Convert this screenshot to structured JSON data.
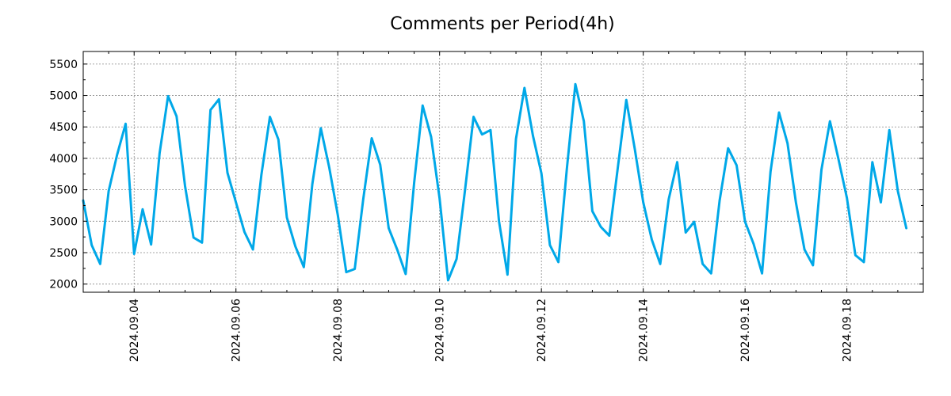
{
  "chart_data": {
    "type": "line",
    "title": "Comments per Period(4h)",
    "xlabel": "",
    "ylabel": "",
    "grid": true,
    "ylim": [
      1870,
      5700
    ],
    "xlim": [
      0,
      16.5
    ],
    "y_ticks": [
      2000,
      2500,
      3000,
      3500,
      4000,
      4500,
      5000,
      5500
    ],
    "x_ticks": [
      {
        "x": 1,
        "label": "2024.09.04"
      },
      {
        "x": 3,
        "label": "2024.09.06"
      },
      {
        "x": 5,
        "label": "2024.09.08"
      },
      {
        "x": 7,
        "label": "2024.09.10"
      },
      {
        "x": 9,
        "label": "2024.09.12"
      },
      {
        "x": 11,
        "label": "2024.09.14"
      },
      {
        "x": 13,
        "label": "2024.09.16"
      },
      {
        "x": 15,
        "label": "2024.09.18"
      }
    ],
    "series": [
      {
        "name": "Comments",
        "color": "#00A8E8",
        "x_start": 0,
        "x_step": 0.16667,
        "values": [
          3330,
          2620,
          2320,
          3480,
          4060,
          4550,
          2480,
          3190,
          2630,
          4080,
          4990,
          4670,
          3560,
          2740,
          2660,
          4770,
          4940,
          3770,
          3300,
          2830,
          2550,
          3740,
          4660,
          4300,
          3060,
          2600,
          2270,
          3590,
          4480,
          3850,
          3100,
          2190,
          2240,
          3350,
          4320,
          3900,
          2890,
          2550,
          2160,
          3610,
          4840,
          4340,
          3360,
          2060,
          2400,
          3500,
          4660,
          4380,
          4450,
          3000,
          2150,
          4310,
          5120,
          4360,
          3760,
          2620,
          2350,
          3840,
          5180,
          4590,
          3160,
          2910,
          2770,
          3850,
          4930,
          4150,
          3300,
          2710,
          2320,
          3350,
          3940,
          2820,
          2990,
          2320,
          2170,
          3330,
          4160,
          3890,
          2990,
          2640,
          2170,
          3790,
          4730,
          4240,
          3290,
          2550,
          2300,
          3820,
          4590,
          3990,
          3370,
          2460,
          2350,
          3940,
          3300,
          4450,
          3480,
          2890
        ]
      }
    ]
  }
}
